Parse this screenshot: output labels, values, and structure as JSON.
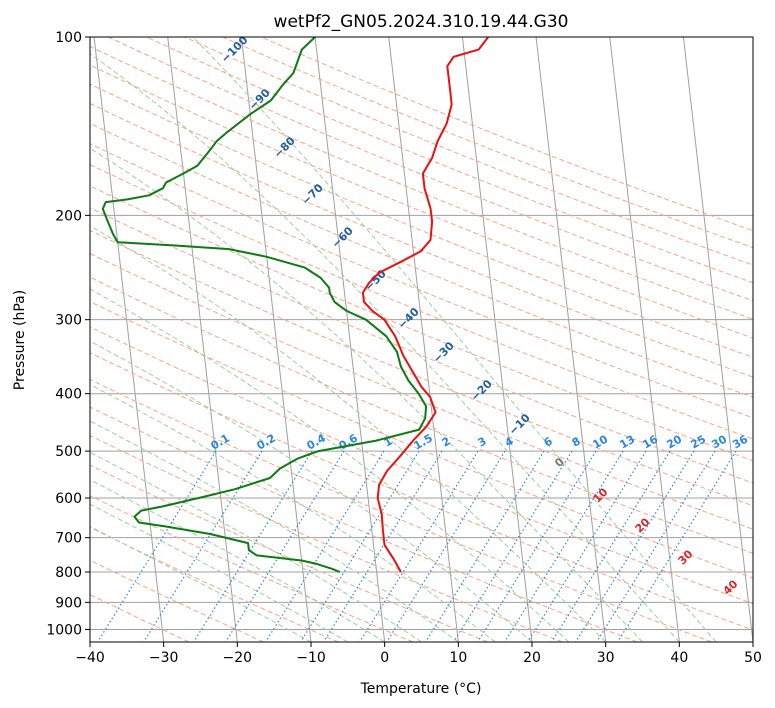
{
  "chart_data": {
    "type": "line",
    "title": "wetPf2_GN05.2024.310.19.44.G30",
    "xlabel": "Temperature (°C)",
    "ylabel": "Pressure (hPa)",
    "xlim": [
      -40,
      50
    ],
    "ylim": [
      1050,
      100
    ],
    "y_scale": "log",
    "x_ticks": [
      -40,
      -30,
      -20,
      -10,
      0,
      10,
      20,
      30,
      40,
      50
    ],
    "x_tick_labels": [
      "−40",
      "−30",
      "−20",
      "−10",
      "0",
      "10",
      "20",
      "30",
      "40",
      "50"
    ],
    "y_ticks": [
      100,
      200,
      300,
      400,
      500,
      600,
      700,
      800,
      900,
      1000
    ],
    "y_tick_labels": [
      "100",
      "200",
      "300",
      "400",
      "500",
      "600",
      "700",
      "800",
      "900",
      "1000"
    ],
    "grid": true,
    "series": [
      {
        "role": "temperature",
        "color": "#e8110f",
        "points": [
          [
            3.3,
            800
          ],
          [
            2.5,
            760
          ],
          [
            1.5,
            720
          ],
          [
            1.5,
            680
          ],
          [
            1.6,
            640
          ],
          [
            1.3,
            600
          ],
          [
            1.7,
            570
          ],
          [
            3.0,
            540
          ],
          [
            5.0,
            510
          ],
          [
            7.0,
            480
          ],
          [
            9.0,
            455
          ],
          [
            10.5,
            430
          ],
          [
            10.0,
            405
          ],
          [
            9.0,
            390
          ],
          [
            7.0,
            345
          ],
          [
            6.2,
            320
          ],
          [
            5.0,
            300
          ],
          [
            3.5,
            290
          ],
          [
            2.5,
            280
          ],
          [
            2.5,
            270
          ],
          [
            3.5,
            260
          ],
          [
            5.0,
            250
          ],
          [
            8.0,
            240
          ],
          [
            11.0,
            230
          ],
          [
            12.5,
            220
          ],
          [
            13.0,
            205
          ],
          [
            13.0,
            195
          ],
          [
            12.5,
            180
          ],
          [
            12.5,
            170
          ],
          [
            14.0,
            160
          ],
          [
            15.0,
            150
          ],
          [
            16.5,
            140
          ],
          [
            17.5,
            130
          ],
          [
            17.5,
            120
          ],
          [
            17.5,
            112
          ],
          [
            18.5,
            108
          ],
          [
            22.0,
            105
          ],
          [
            23.5,
            100
          ]
        ]
      },
      {
        "role": "dewpoint",
        "color": "#0e7a13",
        "points": [
          [
            -5.0,
            800
          ],
          [
            -6.0,
            790
          ],
          [
            -8.0,
            775
          ],
          [
            -10.0,
            765
          ],
          [
            -16.0,
            750
          ],
          [
            -17.0,
            735
          ],
          [
            -17.0,
            715
          ],
          [
            -22.0,
            690
          ],
          [
            -28.0,
            670
          ],
          [
            -31.5,
            660
          ],
          [
            -32.0,
            645
          ],
          [
            -31.0,
            630
          ],
          [
            -28.0,
            620
          ],
          [
            -23.0,
            600
          ],
          [
            -18.0,
            580
          ],
          [
            -13.0,
            555
          ],
          [
            -11.5,
            535
          ],
          [
            -9.0,
            515
          ],
          [
            -6.0,
            500
          ],
          [
            2.0,
            480
          ],
          [
            8.0,
            460
          ],
          [
            9.0,
            440
          ],
          [
            9.3,
            420
          ],
          [
            8.5,
            400
          ],
          [
            7.3,
            380
          ],
          [
            6.5,
            360
          ],
          [
            6.2,
            340
          ],
          [
            5.0,
            320
          ],
          [
            2.5,
            300
          ],
          [
            0.0,
            290
          ],
          [
            -1.5,
            280
          ],
          [
            -2.0,
            270
          ],
          [
            -2.0,
            265
          ],
          [
            -3.0,
            255
          ],
          [
            -5.0,
            245
          ],
          [
            -10.0,
            235
          ],
          [
            -15.0,
            228
          ],
          [
            -22.0,
            225
          ],
          [
            -30.0,
            222
          ],
          [
            -30.5,
            215
          ],
          [
            -31.0,
            205
          ],
          [
            -31.5,
            195
          ],
          [
            -31.0,
            190
          ],
          [
            -28.0,
            188
          ],
          [
            -25.0,
            185
          ],
          [
            -23.0,
            180
          ],
          [
            -22.5,
            176
          ],
          [
            -20.0,
            170
          ],
          [
            -18.0,
            165
          ],
          [
            -17.0,
            160
          ],
          [
            -16.0,
            155
          ],
          [
            -15.0,
            150
          ],
          [
            -13.5,
            145
          ],
          [
            -10.0,
            135
          ],
          [
            -7.0,
            128
          ],
          [
            -5.0,
            120
          ],
          [
            -3.5,
            115
          ],
          [
            -2.0,
            105
          ],
          [
            0.0,
            100
          ]
        ]
      }
    ],
    "dry_adiabat_labels": [
      "−100",
      "−90",
      "−80",
      "−70",
      "−60",
      "−50",
      "−40",
      "−30",
      "−20",
      "−10"
    ],
    "moist_adiabat_labels": [
      "0",
      "10",
      "20",
      "30",
      "40"
    ],
    "mixing_ratio_labels": [
      "0.1",
      "0.2",
      "0.4",
      "0.6",
      "1",
      "1.5",
      "2",
      "3",
      "4",
      "6",
      "8",
      "10",
      "13",
      "16",
      "20",
      "25",
      "30",
      "36"
    ],
    "colors": {
      "isotherm": "#a0a0a0",
      "dry_adiabat": "#f7a58a",
      "moist_adiabat": "#9fcf9f",
      "mixing_ratio": "#2a86e0",
      "dry_label": "#1f5f9e",
      "moist_label": "#d62728",
      "freezing_label": "#777777"
    }
  }
}
